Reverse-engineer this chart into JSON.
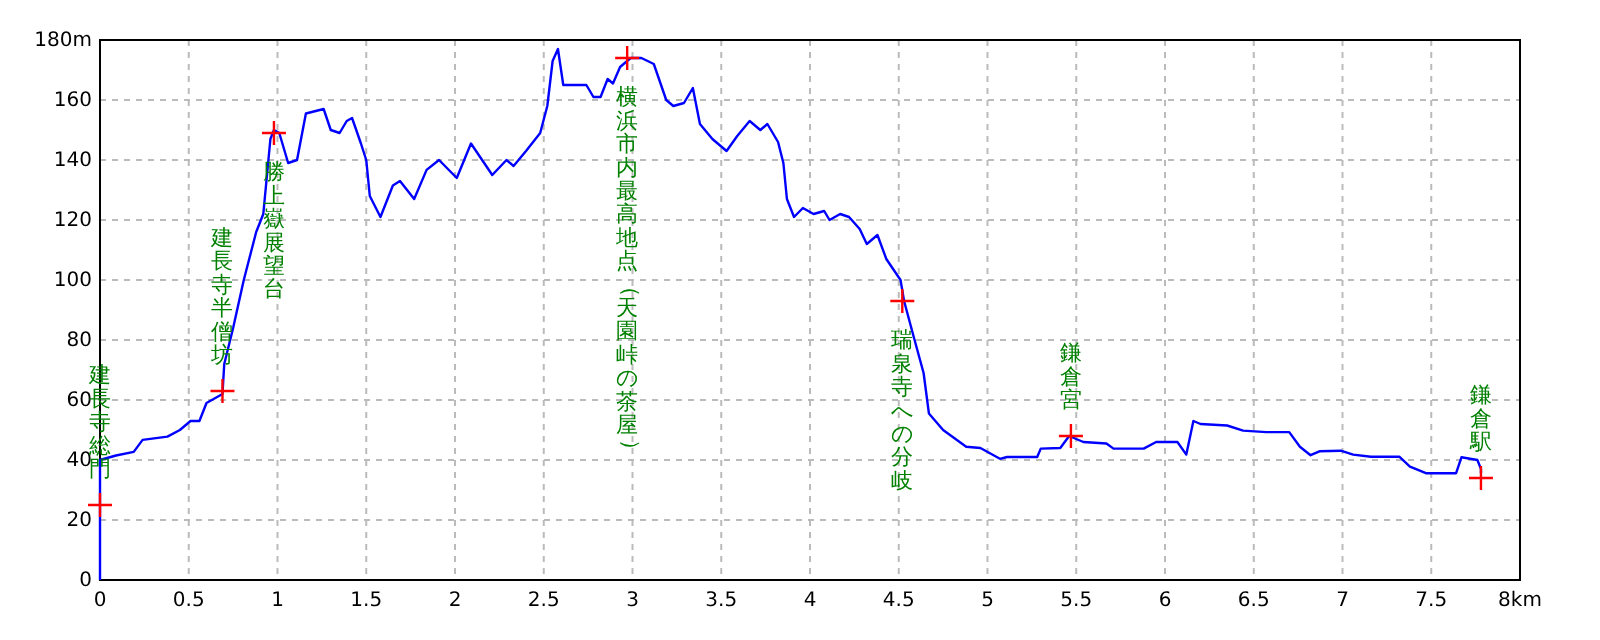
{
  "chart_data": {
    "type": "line",
    "xlim": [
      0,
      8
    ],
    "ylim": [
      0,
      180
    ],
    "grid": true,
    "xticks": [
      0,
      0.5,
      1,
      1.5,
      2,
      2.5,
      3,
      3.5,
      4,
      4.5,
      5,
      5.5,
      6,
      6.5,
      7,
      7.5,
      {
        "value": 8,
        "label": "8km"
      }
    ],
    "yticks": [
      0,
      20,
      40,
      60,
      80,
      100,
      120,
      140,
      160,
      {
        "value": 180,
        "label": "180m"
      }
    ],
    "series": [
      {
        "color": "#0000ff",
        "marker": "none",
        "line_style": "solid",
        "x": [
          0,
          0,
          0.09,
          0.19,
          0.24,
          0.38,
          0.45,
          0.51,
          0.56,
          0.6,
          0.69,
          0.7,
          0.75,
          0.81,
          0.88,
          0.92,
          0.96,
          0.98,
          1.01,
          1.06,
          1.11,
          1.16,
          1.26,
          1.3,
          1.35,
          1.39,
          1.42,
          1.47,
          1.5,
          1.52,
          1.58,
          1.65,
          1.69,
          1.77,
          1.84,
          1.91,
          2.01,
          2.09,
          2.21,
          2.29,
          2.33,
          2.4,
          2.48,
          2.52,
          2.55,
          2.58,
          2.61,
          2.68,
          2.74,
          2.78,
          2.82,
          2.86,
          2.89,
          2.93,
          2.99,
          3.05,
          3.12,
          3.19,
          3.23,
          3.29,
          3.34,
          3.38,
          3.45,
          3.53,
          3.59,
          3.66,
          3.72,
          3.76,
          3.82,
          3.85,
          3.87,
          3.91,
          3.96,
          4.02,
          4.08,
          4.11,
          4.17,
          4.22,
          4.28,
          4.32,
          4.38,
          4.43,
          4.51,
          4.53,
          4.58,
          4.64,
          4.67,
          4.75,
          4.88,
          4.96,
          5.07,
          5.11,
          5.28,
          5.3,
          5.41,
          5.46,
          5.54,
          5.67,
          5.71,
          5.88,
          5.95,
          6.07,
          6.12,
          6.16,
          6.2,
          6.35,
          6.44,
          6.57,
          6.7,
          6.76,
          6.82,
          6.87,
          6.99,
          7.06,
          7.16,
          7.32,
          7.38,
          7.47,
          7.64,
          7.67,
          7.76,
          7.78,
          7.78
        ],
        "values": [
          0,
          40,
          41.5,
          42.7,
          46.7,
          47.8,
          50,
          53,
          53,
          59,
          62,
          72,
          84,
          100,
          116,
          122,
          147,
          150,
          149,
          139,
          140,
          155.5,
          157,
          150,
          149,
          153,
          154,
          145.5,
          140,
          128,
          121,
          131.5,
          133,
          127,
          136.7,
          140,
          134,
          145.5,
          135,
          140,
          138,
          143,
          149,
          158,
          173,
          177,
          165,
          165,
          165,
          161,
          161,
          167,
          165.5,
          171,
          174,
          174,
          172,
          160,
          158,
          159,
          164,
          152,
          147,
          143,
          148,
          153,
          150,
          152,
          146,
          139,
          127,
          121,
          124,
          122,
          123,
          120,
          122,
          121,
          117,
          112,
          115,
          107,
          100,
          93,
          82,
          69,
          55.5,
          50,
          44.4,
          44,
          40.4,
          41,
          41,
          43.8,
          44,
          48,
          46,
          45.5,
          43.8,
          43.8,
          46,
          46,
          41.8,
          53,
          52,
          51.5,
          49.8,
          49.3,
          49.3,
          44.4,
          41.6,
          42.9,
          43.1,
          41.8,
          41.1,
          41.1,
          37.8,
          35.6,
          35.6,
          40.9,
          40,
          37,
          35.6
        ]
      },
      {
        "type": "scatter",
        "color": "#ff0000",
        "marker": "cross",
        "x": [
          0,
          0.69,
          0.98,
          2.97,
          4.52,
          5.47,
          7.78
        ],
        "values": [
          25,
          63,
          149,
          174,
          93,
          48,
          34
        ]
      }
    ],
    "annotations": [
      {
        "text": "建長寺総門",
        "x": 0,
        "y": 25
      },
      {
        "text": "建長寺半僧坊",
        "x": 0.69,
        "y": 63
      },
      {
        "text": "勝上嶽展望台",
        "x": 0.98,
        "y": 149
      },
      "横浜市内最高地点（天園峠の茶屋）",
      {
        "text": "瑞泉寺への分岐",
        "x": 4.52,
        "y": 93
      },
      {
        "text": "鎌倉宮",
        "x": 5.47,
        "y": 48
      },
      {
        "text": "鎌倉駅",
        "x": 7.78,
        "y": 34
      }
    ]
  }
}
